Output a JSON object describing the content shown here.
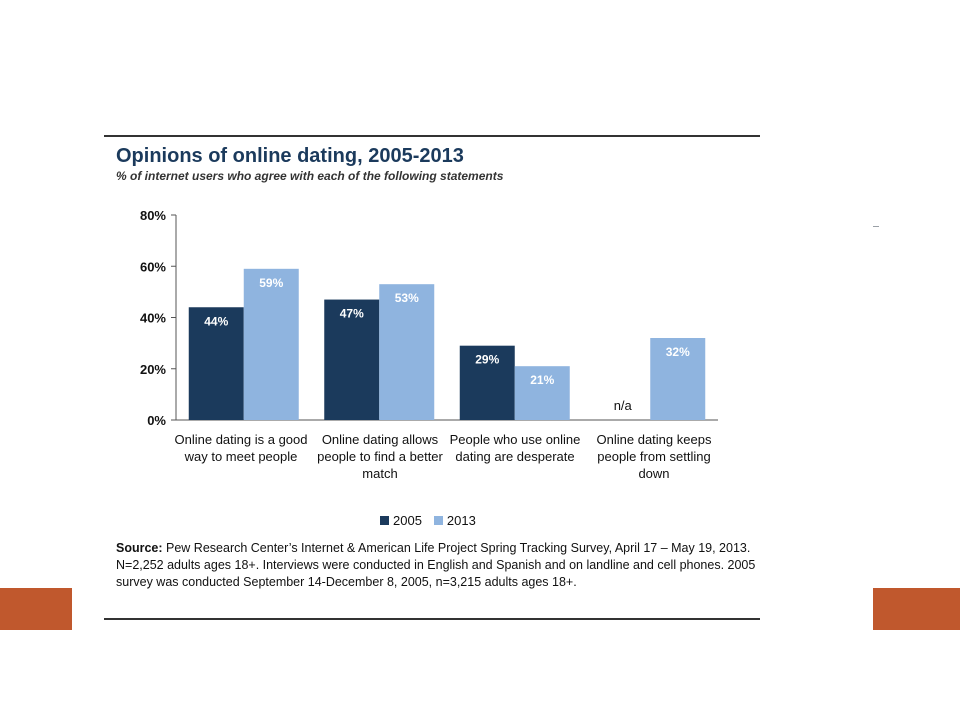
{
  "colors": {
    "accent": "#c0582d",
    "series_2005": "#1b3a5c",
    "series_2013": "#8fb4df",
    "title": "#1b3a5c"
  },
  "source": {
    "label": "Source:",
    "text": " Pew Research Center’s Internet & American Life Project Spring Tracking Survey, April 17 – May 19, 2013. N=2,252 adults ages 18+. Interviews were conducted in English and Spanish and on landline and cell phones.  2005 survey was conducted September 14-December 8, 2005, n=3,215 adults ages 18+."
  },
  "chart_data": {
    "type": "bar",
    "title": "Opinions of online dating, 2005-2013",
    "subtitle": "% of internet users who agree with each of the following statements",
    "categories": [
      "Online dating is a good way to meet people",
      "Online dating allows people to find a better match",
      "People who use online dating are desperate",
      "Online dating keeps people from settling down"
    ],
    "series": [
      {
        "name": "2005",
        "values": [
          44,
          47,
          29,
          null
        ],
        "labels": [
          "44%",
          "47%",
          "29%",
          "n/a"
        ]
      },
      {
        "name": "2013",
        "values": [
          59,
          53,
          21,
          32
        ],
        "labels": [
          "59%",
          "53%",
          "21%",
          "32%"
        ]
      }
    ],
    "ylim": [
      0,
      80
    ],
    "yticks": [
      0,
      20,
      40,
      60,
      80
    ],
    "ytick_labels": [
      "0%",
      "20%",
      "40%",
      "60%",
      "80%"
    ],
    "xlabel": "",
    "ylabel": "",
    "grid": false,
    "legend": "bottom-center"
  }
}
